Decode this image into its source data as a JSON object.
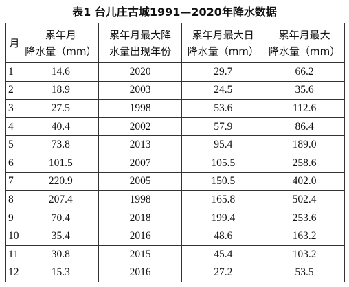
{
  "title": "表1  台儿庄古城1991—2020年降水数据",
  "table": {
    "header": [
      [
        "月"
      ],
      [
        "累年月",
        "降水量（mm）"
      ],
      [
        "累年月最大降",
        "水量出现年份"
      ],
      [
        "累年月最大日",
        "降水量（mm）"
      ],
      [
        "累年月最大",
        "降水量（mm）"
      ]
    ],
    "rows": [
      [
        "1",
        "14.6",
        "2020",
        "29.7",
        "66.2"
      ],
      [
        "2",
        "18.9",
        "2003",
        "24.5",
        "35.6"
      ],
      [
        "3",
        "27.5",
        "1998",
        "53.6",
        "112.6"
      ],
      [
        "4",
        "40.4",
        "2002",
        "57.9",
        "86.4"
      ],
      [
        "5",
        "73.8",
        "2013",
        "95.4",
        "189.0"
      ],
      [
        "6",
        "101.5",
        "2007",
        "105.5",
        "258.6"
      ],
      [
        "7",
        "220.9",
        "2005",
        "150.5",
        "402.0"
      ],
      [
        "8",
        "207.4",
        "1998",
        "165.8",
        "502.4"
      ],
      [
        "9",
        "70.4",
        "2018",
        "199.4",
        "253.6"
      ],
      [
        "10",
        "35.4",
        "2016",
        "48.6",
        "163.2"
      ],
      [
        "11",
        "30.8",
        "2015",
        "45.4",
        "103.2"
      ],
      [
        "12",
        "15.3",
        "2016",
        "27.2",
        "53.5"
      ]
    ]
  }
}
